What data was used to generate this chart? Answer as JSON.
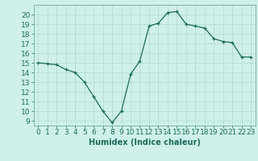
{
  "xlabel": "Humidex (Indice chaleur)",
  "x": [
    0,
    1,
    2,
    3,
    4,
    5,
    6,
    7,
    8,
    9,
    10,
    11,
    12,
    13,
    14,
    15,
    16,
    17,
    18,
    19,
    20,
    21,
    22,
    23
  ],
  "y": [
    15,
    14.9,
    14.8,
    14.3,
    14.0,
    13.0,
    11.5,
    10.0,
    8.8,
    10.0,
    13.8,
    15.2,
    18.8,
    19.1,
    20.2,
    20.3,
    19.0,
    18.8,
    18.6,
    17.5,
    17.2,
    17.1,
    15.6,
    15.6
  ],
  "line_color": "#1a6b5a",
  "marker": "+",
  "bg_color": "#cff0ea",
  "grid_color": "#b0d8d2",
  "spine_color": "#6aab9e",
  "ylim": [
    8.5,
    21
  ],
  "xlim": [
    -0.5,
    23.5
  ],
  "yticks": [
    9,
    10,
    11,
    12,
    13,
    14,
    15,
    16,
    17,
    18,
    19,
    20
  ],
  "xticks": [
    0,
    1,
    2,
    3,
    4,
    5,
    6,
    7,
    8,
    9,
    10,
    11,
    12,
    13,
    14,
    15,
    16,
    17,
    18,
    19,
    20,
    21,
    22,
    23
  ],
  "label_fontsize": 7,
  "tick_fontsize": 6.5
}
